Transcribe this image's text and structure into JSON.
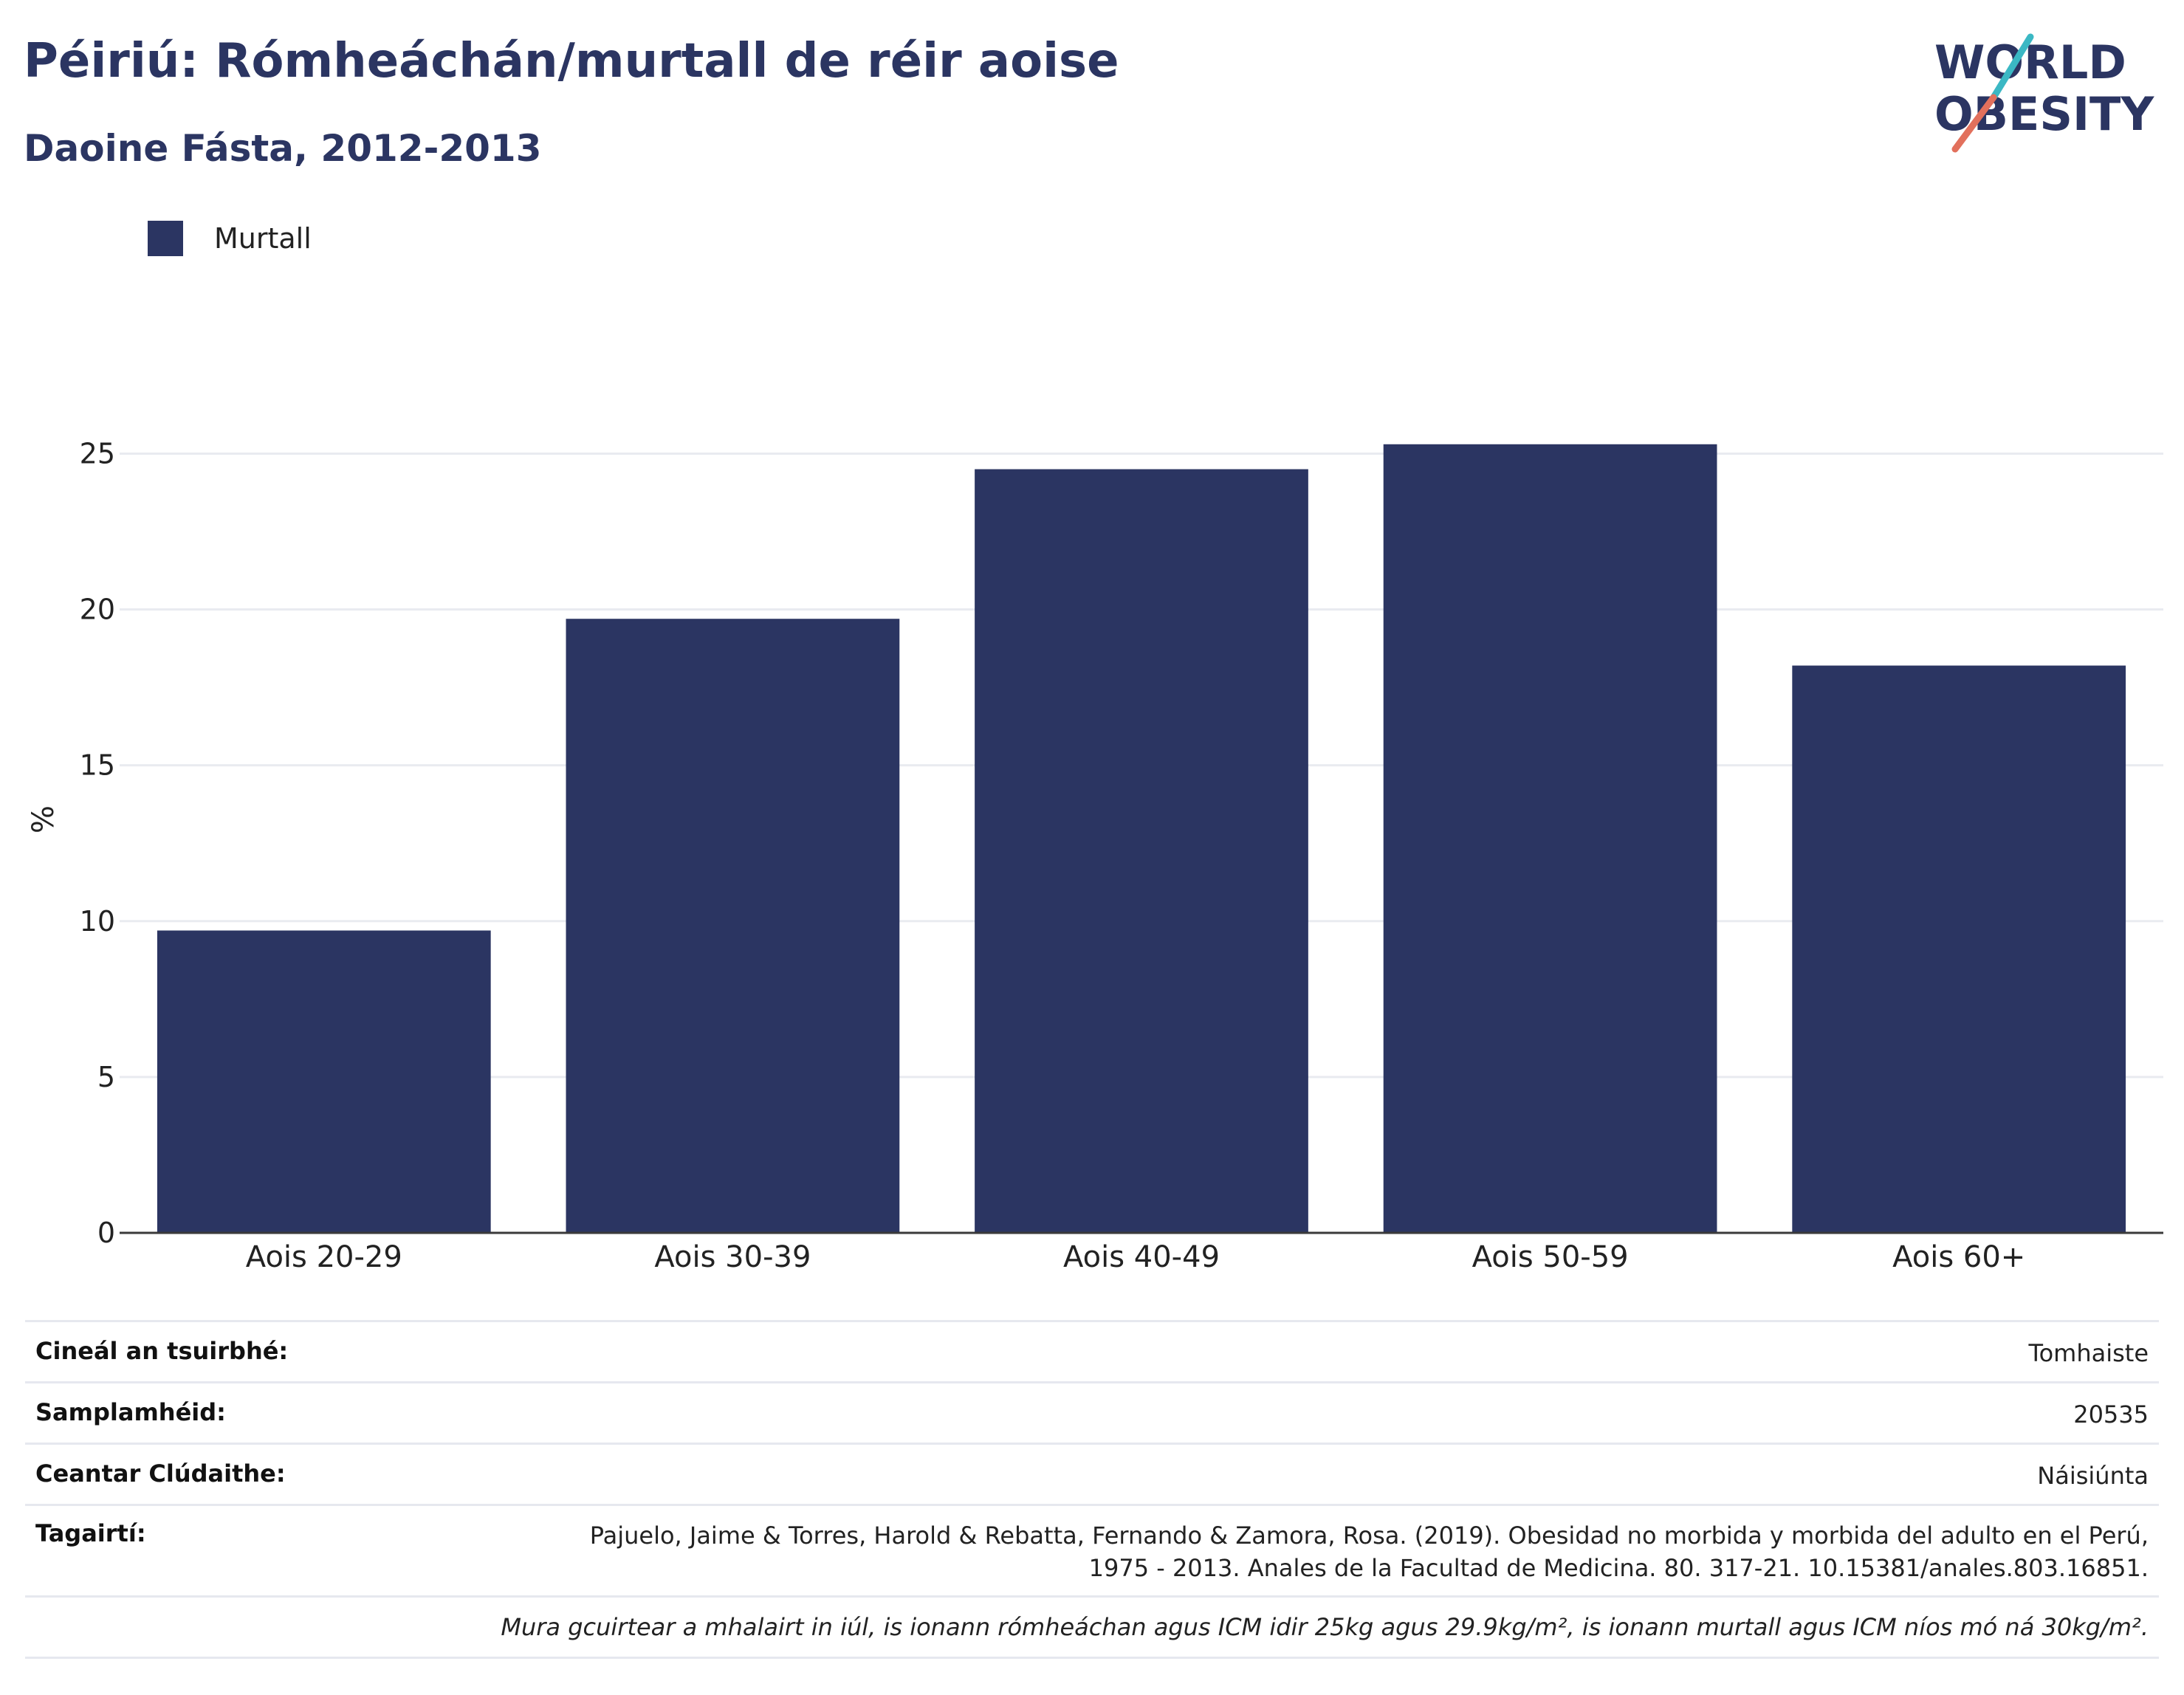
{
  "header": {
    "title": "Péiriú: Rómheáchán/murtall de réir aoise",
    "subtitle": "Daoine Fásta, 2012-2013"
  },
  "logo": {
    "line1": "WORLD",
    "line2": "OBESITY",
    "colors": {
      "text": "#2b3562",
      "slash_top": "#3bb8c4",
      "slash_bottom": "#e2705c"
    }
  },
  "legend": {
    "label": "Murtall",
    "color": "#2b3562"
  },
  "chart_data": {
    "type": "bar",
    "categories": [
      "Aois 20-29",
      "Aois 30-39",
      "Aois 40-49",
      "Aois 50-59",
      "Aois 60+"
    ],
    "series": [
      {
        "name": "Murtall",
        "values": [
          9.7,
          19.7,
          24.5,
          25.3,
          18.2
        ],
        "color": "#2b3562"
      }
    ],
    "ylabel": "%",
    "ylim": [
      0,
      27
    ],
    "yticks": [
      0,
      5,
      10,
      15,
      20,
      25
    ],
    "grid": true,
    "legend_position": "top-left"
  },
  "meta": {
    "rows": [
      {
        "key": "Cineál an tsuirbhé:",
        "value": "Tomhaiste"
      },
      {
        "key": "Samplamhéid:",
        "value": "20535"
      },
      {
        "key": "Ceantar Clúdaithe:",
        "value": "Náisiúnta"
      },
      {
        "key": "Tagairtí:",
        "value_line1": "Pajuelo, Jaime & Torres, Harold & Rebatta, Fernando & Zamora, Rosa. (2019). Obesidad no morbida y morbida del adulto en el Perú,",
        "value_line2": "1975 - 2013. Anales de la Facultad de Medicina. 80. 317-21. 10.15381/anales.803.16851."
      }
    ],
    "note": "Mura gcuirtear a mhalairt in iúl, is ionann rómheáchan agus ICM idir 25kg agus 29.9kg/m², is ionann murtall agus ICM níos mó ná 30kg/m²."
  }
}
